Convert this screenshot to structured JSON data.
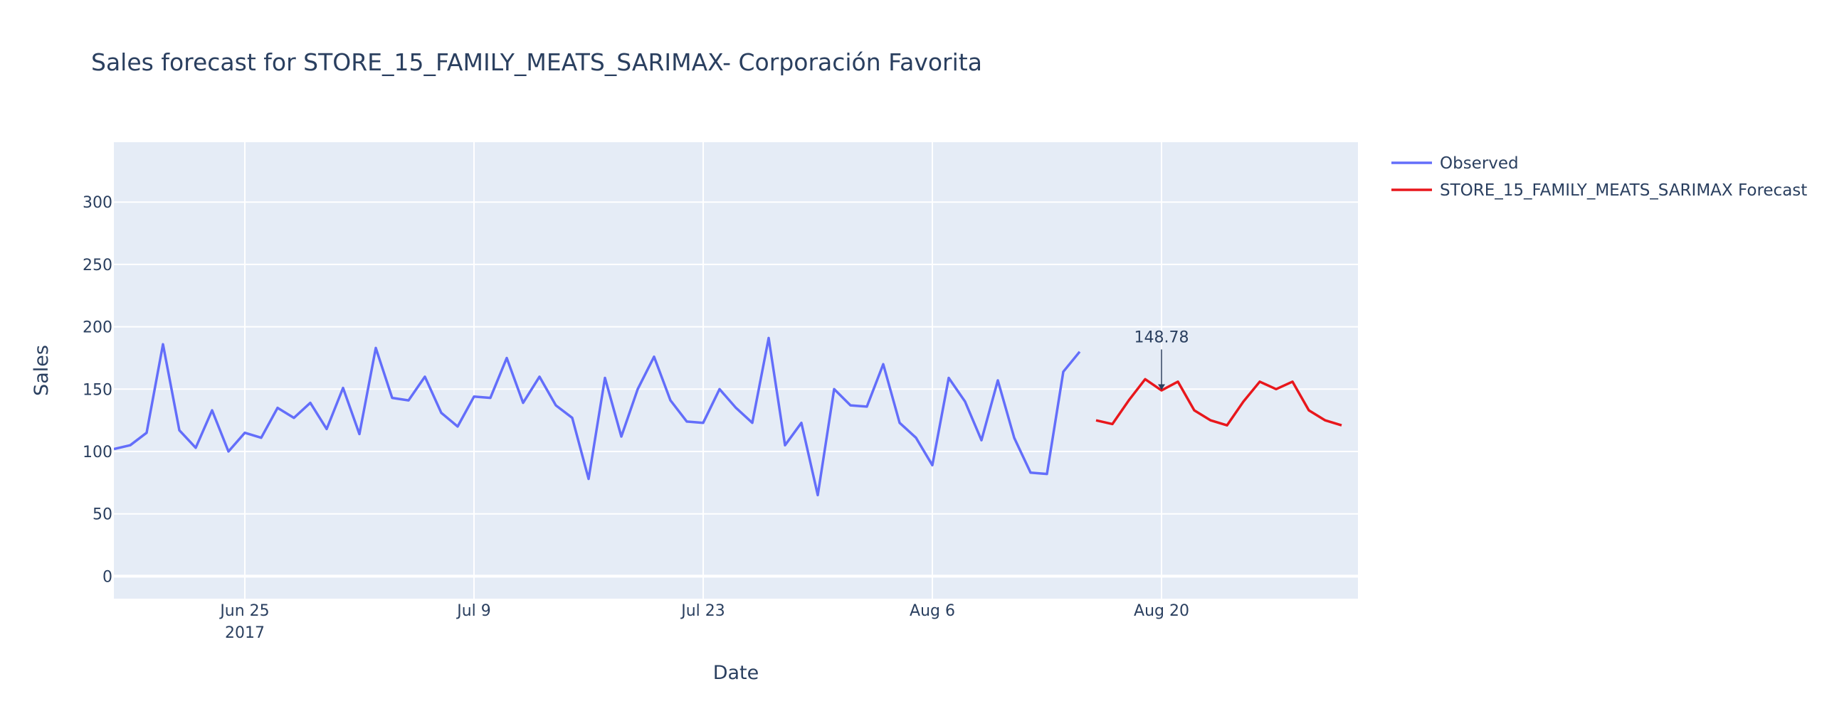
{
  "chart_data": {
    "type": "line",
    "title": "Sales forecast for STORE_15_FAMILY_MEATS_SARIMAX- Corporación Favorita",
    "xlabel": "Date",
    "ylabel": "Sales",
    "ylim": [
      -18,
      348
    ],
    "xlim": [
      "2017-06-17",
      "2017-09-01"
    ],
    "y_ticks": [
      0,
      50,
      100,
      150,
      200,
      250,
      300
    ],
    "x_ticks": [
      {
        "date": "2017-06-25",
        "label": "Jun 25",
        "sublabel": "2017"
      },
      {
        "date": "2017-07-09",
        "label": "Jul 9",
        "sublabel": ""
      },
      {
        "date": "2017-07-23",
        "label": "Jul 23",
        "sublabel": ""
      },
      {
        "date": "2017-08-06",
        "label": "Aug 6",
        "sublabel": ""
      },
      {
        "date": "2017-08-20",
        "label": "Aug 20",
        "sublabel": ""
      }
    ],
    "grid": true,
    "legend_position": "top-right outside",
    "series": [
      {
        "name": "Observed",
        "color": "#636efa",
        "start_date": "2017-06-17",
        "values": [
          102,
          105,
          115,
          186,
          117,
          103,
          133,
          100,
          115,
          111,
          135,
          127,
          139,
          118,
          151,
          114,
          183,
          143,
          141,
          160,
          131,
          120,
          144,
          143,
          175,
          139,
          160,
          137,
          127,
          78,
          159,
          112,
          150,
          176,
          141,
          124,
          123,
          150,
          135,
          123,
          191,
          105,
          123,
          65,
          150,
          137,
          136,
          170,
          123,
          111,
          89,
          159,
          140,
          109,
          157,
          111,
          83,
          82,
          164,
          180
        ]
      },
      {
        "name": "STORE_15_FAMILY_MEATS_SARIMAX Forecast",
        "color": "#e8171c",
        "start_date": "2017-08-16",
        "values": [
          125,
          122,
          141,
          158,
          149,
          156,
          133,
          125,
          121,
          140,
          156,
          150,
          156,
          133,
          125,
          121
        ]
      }
    ],
    "annotations": [
      {
        "date": "2017-08-20",
        "value": 148.78,
        "text": "148.78"
      }
    ]
  }
}
